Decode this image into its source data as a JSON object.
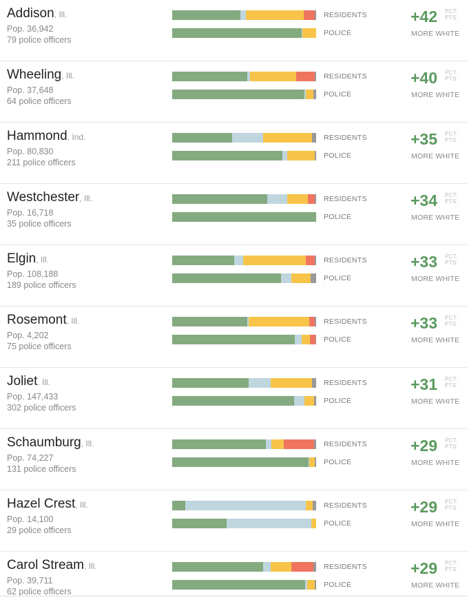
{
  "labels": {
    "residents": "RESIDENTS",
    "police": "POLICE",
    "pct_line1": "PCT.",
    "pct_line2": "PTS.",
    "more_white": "MORE WHITE"
  },
  "colors": {
    "white": "#84aa80",
    "black": "#bfd6df",
    "hispanic": "#f7c449",
    "asian": "#ef7561",
    "other": "#999999"
  },
  "chart_data": {
    "type": "bar",
    "stacked": true,
    "orientation": "horizontal",
    "segment_order": [
      "white",
      "black",
      "hispanic",
      "asian",
      "other"
    ],
    "rows": [
      {
        "city": "Addison",
        "state": ", Ill.",
        "population": "Pop. 36,942",
        "officers": "79 police officers",
        "difference": "+42",
        "residents": [
          47.5,
          3.5,
          40.5,
          7.5,
          1.0
        ],
        "police": [
          90.0,
          0.5,
          9.5,
          0,
          0
        ]
      },
      {
        "city": "Wheeling",
        "state": ", Ill.",
        "population": "Pop. 37,648",
        "officers": "64 police officers",
        "difference": "+40",
        "residents": [
          52.0,
          2.0,
          32.0,
          13.0,
          1.0
        ],
        "police": [
          92.0,
          1.0,
          5.0,
          0,
          2.0
        ]
      },
      {
        "city": "Hammond",
        "state": ", Ind.",
        "population": "Pop. 80,830",
        "officers": "211 police officers",
        "difference": "+35",
        "residents": [
          41.5,
          21.5,
          34.0,
          0,
          3.0
        ],
        "police": [
          76.5,
          3.5,
          19.0,
          0,
          1.0
        ]
      },
      {
        "city": "Westchester",
        "state": ", Ill.",
        "population": "Pop. 16,718",
        "officers": "35 police officers",
        "difference": "+34",
        "residents": [
          66.0,
          14.0,
          14.5,
          4.5,
          1.0
        ],
        "police": [
          100,
          0,
          0,
          0,
          0
        ]
      },
      {
        "city": "Elgin",
        "state": ", Ill.",
        "population": "Pop. 108,188",
        "officers": "189 police officers",
        "difference": "+33",
        "residents": [
          43.0,
          6.5,
          43.5,
          6.0,
          1.0
        ],
        "police": [
          75.5,
          7.5,
          13.0,
          0,
          4.0
        ]
      },
      {
        "city": "Rosemont",
        "state": ", Ill.",
        "population": "Pop. 4,202",
        "officers": "75 police officers",
        "difference": "+33",
        "residents": [
          52.0,
          1.0,
          42.0,
          4.0,
          1.0
        ],
        "police": [
          85.0,
          5.0,
          5.5,
          4.0,
          0.5
        ]
      },
      {
        "city": "Joliet",
        "state": ", Ill.",
        "population": "Pop. 147,433",
        "officers": "302 police officers",
        "difference": "+31",
        "residents": [
          53.0,
          15.5,
          28.5,
          0,
          3.0
        ],
        "police": [
          84.5,
          7.5,
          6.5,
          0,
          1.5
        ]
      },
      {
        "city": "Schaumburg",
        "state": ", Ill.",
        "population": "Pop. 74,227",
        "officers": "131 police officers",
        "difference": "+29",
        "residents": [
          65.0,
          4.0,
          8.5,
          21.0,
          1.5
        ],
        "police": [
          94.5,
          0.5,
          4.0,
          0,
          1.0
        ]
      },
      {
        "city": "Hazel Crest",
        "state": ", Ill.",
        "population": "Pop. 14,100",
        "officers": "29 police officers",
        "difference": "+29",
        "residents": [
          9.0,
          84.0,
          4.5,
          0,
          2.5
        ],
        "police": [
          38.0,
          58.5,
          3.5,
          0,
          0
        ]
      },
      {
        "city": "Carol Stream",
        "state": ", Ill.",
        "population": "Pop. 39,711",
        "officers": "62 police officers",
        "difference": "+29",
        "residents": [
          63.0,
          5.5,
          14.5,
          15.0,
          2.0
        ],
        "police": [
          92.5,
          1.5,
          5.0,
          0,
          1.0
        ]
      }
    ]
  }
}
